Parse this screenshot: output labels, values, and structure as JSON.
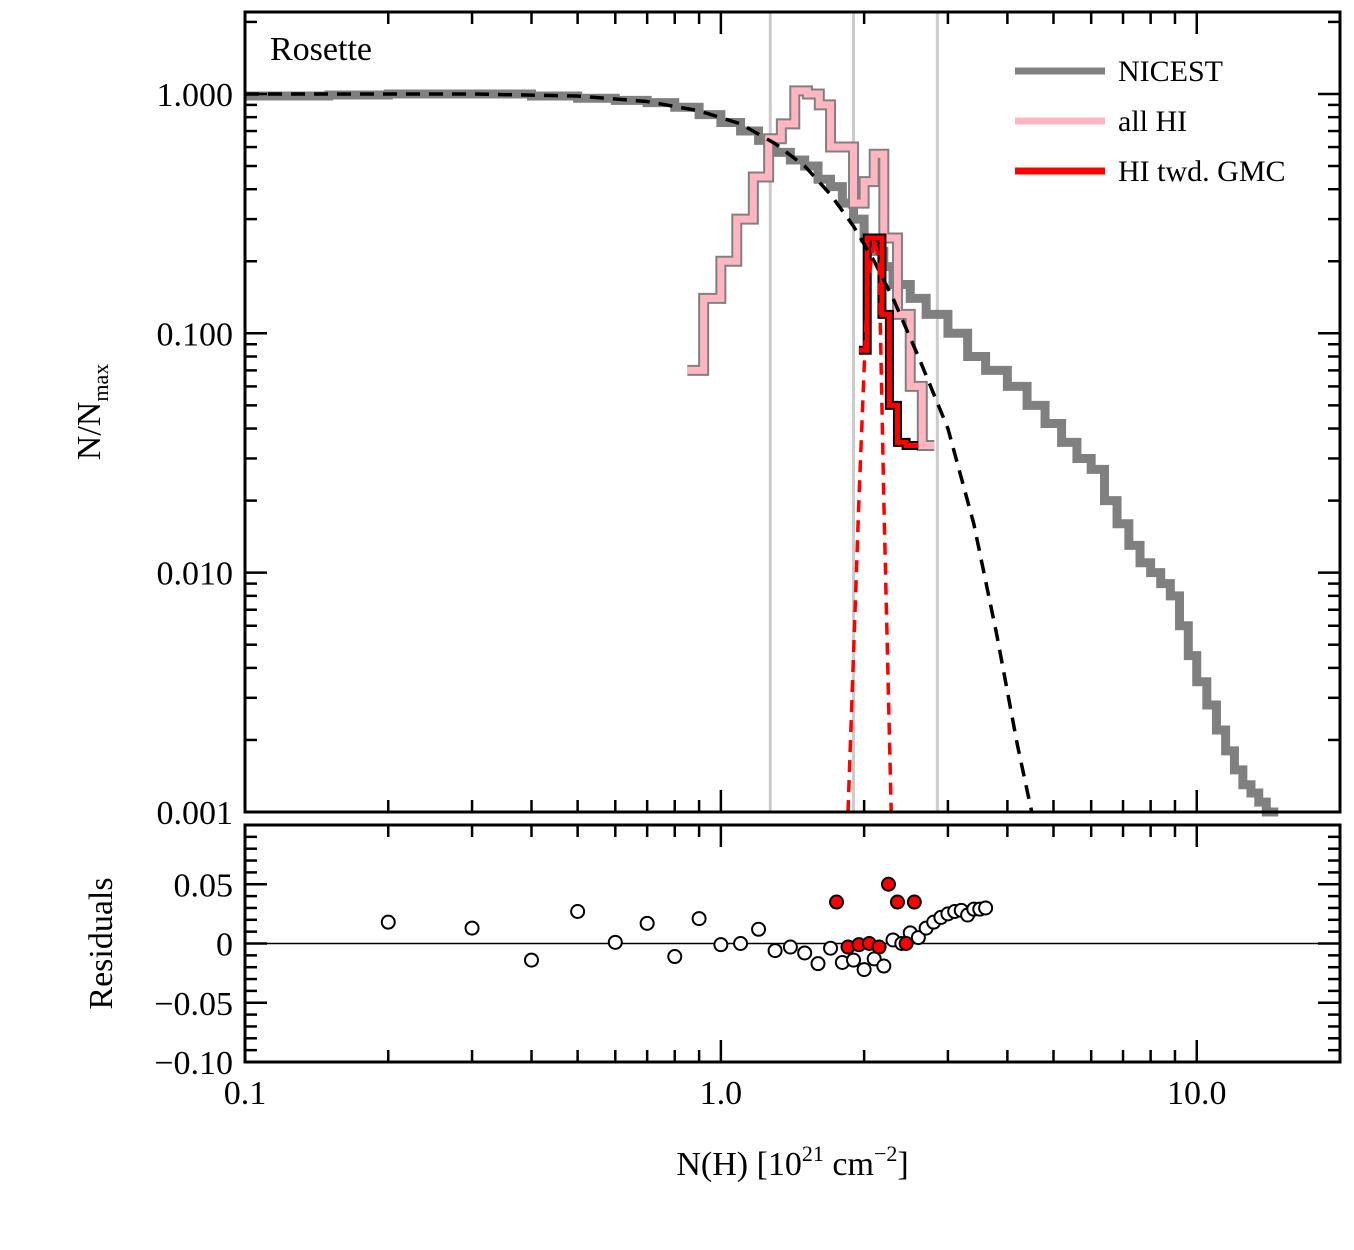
{
  "colors": {
    "nicest": "#808080",
    "all_hi": "#ffb6c1",
    "hi_gmc": "#ff0000",
    "vline": "#cccccc",
    "fit": "#000000"
  },
  "chart_data": [
    {
      "type": "line",
      "panel": "top",
      "title": "Rosette",
      "ylabel_main": "N/N",
      "ylabel_sub": "max",
      "x_scale": "log",
      "y_scale": "log",
      "xlim": [
        0.1,
        20
      ],
      "ylim": [
        0.001,
        2.2
      ],
      "y_ticks": [
        1.0,
        0.1,
        0.01,
        0.001
      ],
      "y_tick_labels": [
        "1.000",
        "0.100",
        "0.010",
        "0.001"
      ],
      "legend_position": "top-right",
      "legend": [
        {
          "label": "NICEST",
          "color": "#808080"
        },
        {
          "label": "all HI",
          "color": "#ffb6c1"
        },
        {
          "label": "HI twd. GMC",
          "color": "#ff0000"
        }
      ],
      "vertical_lines_x": [
        1.27,
        1.9,
        2.85
      ],
      "series": [
        {
          "name": "NICEST",
          "style": "step",
          "x": [
            0.1,
            0.15,
            0.2,
            0.3,
            0.4,
            0.5,
            0.6,
            0.7,
            0.8,
            0.9,
            1.0,
            1.1,
            1.2,
            1.3,
            1.4,
            1.5,
            1.6,
            1.7,
            1.8,
            1.9,
            2.0,
            2.1,
            2.2,
            2.3,
            2.5,
            2.7,
            3.0,
            3.3,
            3.6,
            4.0,
            4.4,
            4.8,
            5.2,
            5.6,
            6.0,
            6.4,
            6.8,
            7.2,
            7.6,
            8.0,
            8.4,
            8.8,
            9.2,
            9.6,
            10.0,
            10.5,
            11.0,
            11.5,
            12.0,
            12.5,
            13.0,
            13.5,
            14.0
          ],
          "y": [
            0.98,
            0.99,
            1.0,
            1.0,
            0.98,
            0.96,
            0.94,
            0.92,
            0.88,
            0.82,
            0.76,
            0.7,
            0.64,
            0.57,
            0.53,
            0.5,
            0.44,
            0.41,
            0.35,
            0.3,
            0.25,
            0.22,
            0.19,
            0.16,
            0.14,
            0.12,
            0.1,
            0.08,
            0.07,
            0.06,
            0.05,
            0.042,
            0.035,
            0.03,
            0.027,
            0.02,
            0.016,
            0.013,
            0.011,
            0.01,
            0.009,
            0.008,
            0.006,
            0.0045,
            0.0035,
            0.0028,
            0.0022,
            0.0018,
            0.0015,
            0.0013,
            0.0012,
            0.0011,
            0.001
          ]
        },
        {
          "name": "all HI",
          "style": "step",
          "x": [
            0.85,
            0.92,
            1.0,
            1.08,
            1.17,
            1.26,
            1.34,
            1.43,
            1.52,
            1.61,
            1.7,
            1.8,
            1.9,
            2.0,
            2.1,
            2.2,
            2.35,
            2.5,
            2.65
          ],
          "y": [
            0.07,
            0.14,
            0.2,
            0.3,
            0.45,
            0.65,
            0.75,
            1.03,
            1.0,
            0.9,
            0.6,
            0.6,
            0.35,
            0.43,
            0.56,
            0.25,
            0.12,
            0.06,
            0.034
          ]
        },
        {
          "name": "HI twd. GMC",
          "style": "step",
          "x": [
            1.95,
            2.03,
            2.1,
            2.18,
            2.26,
            2.35,
            2.45
          ],
          "y": [
            0.085,
            0.25,
            0.25,
            0.12,
            0.05,
            0.035,
            0.034
          ]
        },
        {
          "name": "",
          "style": "dashed",
          "note_color": "#000000",
          "x": [
            0.1,
            0.2,
            0.3,
            0.5,
            0.7,
            0.9,
            1.1,
            1.3,
            1.5,
            1.7,
            1.9,
            2.1,
            2.3,
            2.6,
            3.0,
            3.4,
            3.8,
            4.2,
            4.5
          ],
          "y": [
            1.0,
            1.0,
            1.0,
            0.98,
            0.93,
            0.85,
            0.75,
            0.62,
            0.5,
            0.38,
            0.28,
            0.2,
            0.14,
            0.08,
            0.04,
            0.016,
            0.0055,
            0.0019,
            0.001
          ]
        },
        {
          "name": "",
          "style": "dashed-red",
          "x": [
            1.85,
            1.95,
            2.03,
            2.1,
            2.15,
            2.2,
            2.28
          ],
          "y": [
            0.001,
            0.02,
            0.15,
            0.25,
            0.2,
            0.02,
            0.001
          ]
        }
      ]
    },
    {
      "type": "scatter",
      "panel": "bottom",
      "ylabel": "Residuals",
      "xlabel_main": "N(H) [10",
      "xlabel_exp1": "21",
      "xlabel_unit": " cm",
      "xlabel_exp2": "−2",
      "xlabel_close": "]",
      "x_scale": "log",
      "xlim": [
        0.1,
        20
      ],
      "ylim": [
        -0.1,
        0.1
      ],
      "y_ticks": [
        0.05,
        0,
        -0.05,
        -0.1
      ],
      "y_tick_labels": [
        "0.05",
        "0",
        "−0.05",
        "−0.10"
      ],
      "x_ticks": [
        0.1,
        1.0,
        10.0
      ],
      "x_tick_labels": [
        "0.1",
        "1.0",
        "10.0"
      ],
      "zero_line": 0,
      "series": [
        {
          "name": "",
          "marker": "open-circle",
          "x": [
            0.2,
            0.3,
            0.4,
            0.5,
            0.6,
            0.7,
            0.8,
            0.9,
            1.0,
            1.1,
            1.2,
            1.3,
            1.4,
            1.5,
            1.6,
            1.7,
            1.8,
            1.9,
            2.0,
            2.1,
            2.2,
            2.3,
            2.4,
            2.5,
            2.6,
            2.7,
            2.8,
            2.9,
            3.0,
            3.1,
            3.2,
            3.3,
            3.4,
            3.5,
            3.6
          ],
          "y": [
            0.018,
            0.013,
            -0.014,
            0.027,
            0.001,
            0.017,
            -0.011,
            0.021,
            -0.001,
            0.0,
            0.012,
            -0.006,
            -0.003,
            -0.008,
            -0.017,
            -0.004,
            -0.016,
            -0.014,
            -0.022,
            -0.013,
            -0.019,
            0.003,
            0.0,
            0.009,
            0.005,
            0.013,
            0.018,
            0.022,
            0.025,
            0.027,
            0.028,
            0.024,
            0.029,
            0.029,
            0.03
          ]
        },
        {
          "name": "",
          "marker": "filled-red-circle",
          "x": [
            1.75,
            1.85,
            1.95,
            2.05,
            2.15,
            2.25,
            2.35,
            2.45,
            2.55
          ],
          "y": [
            0.035,
            -0.003,
            -0.001,
            0.0,
            -0.003,
            0.05,
            0.035,
            0.0,
            0.035
          ]
        }
      ]
    }
  ]
}
